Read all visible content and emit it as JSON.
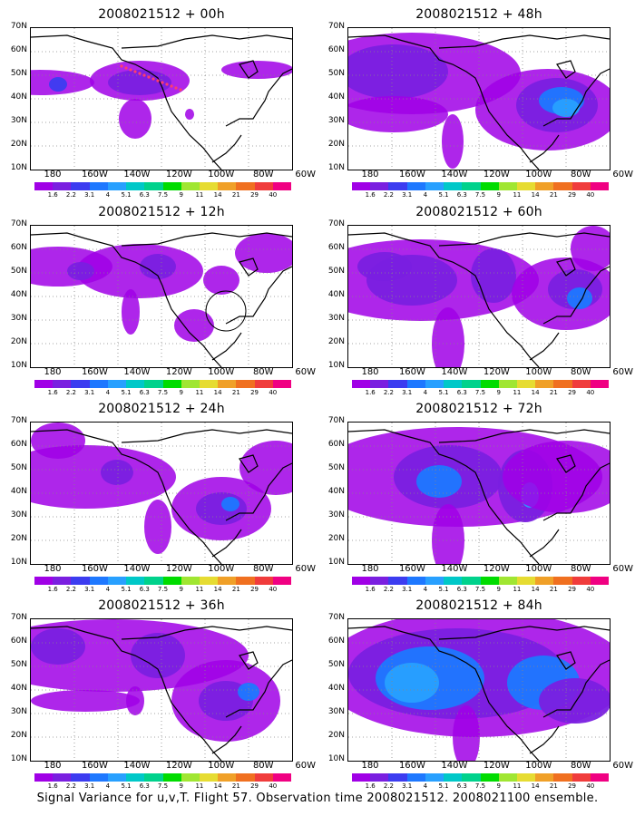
{
  "caption": "Signal Variance for u,v,T. Flight 57. Observation time 2008021512. 2008021100 ensemble.",
  "panels": [
    {
      "title": "2008021512 + 00h"
    },
    {
      "title": "2008021512 + 48h"
    },
    {
      "title": "2008021512 + 12h"
    },
    {
      "title": "2008021512 + 60h"
    },
    {
      "title": "2008021512 + 24h"
    },
    {
      "title": "2008021512 + 72h"
    },
    {
      "title": "2008021512 + 36h"
    },
    {
      "title": "2008021512 + 84h"
    }
  ],
  "lat_labels": [
    "70N",
    "60N",
    "50N",
    "40N",
    "30N",
    "20N",
    "10N"
  ],
  "lon_labels": [
    "180",
    "160W",
    "140W",
    "120W",
    "100W",
    "80W",
    "60W"
  ],
  "colorbar": {
    "labels": [
      "1.6",
      "2.2",
      "3.1",
      "4",
      "5.1",
      "6.3",
      "7.5",
      "9",
      "11",
      "14",
      "21",
      "29",
      "40"
    ],
    "colors": [
      "#a000e6",
      "#7a1fe0",
      "#3c3cf0",
      "#1e78ff",
      "#28a0ff",
      "#00c8c8",
      "#00d28c",
      "#00dc00",
      "#a0e632",
      "#e6dc32",
      "#f0a028",
      "#f07020",
      "#f03c3c",
      "#f00082"
    ]
  },
  "colors": {
    "outline": "#000000",
    "grid": "#888888",
    "track": "#ff3c6e"
  }
}
